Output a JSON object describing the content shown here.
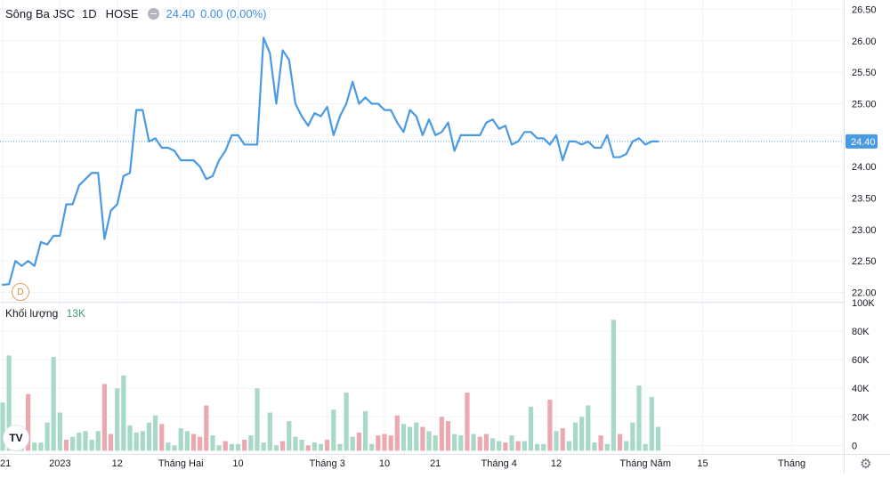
{
  "header": {
    "symbol": "Sông Ba JSC",
    "timeframe": "1D",
    "exchange": "HOSE",
    "price": "24.40",
    "change": "0.00 (0.00%)"
  },
  "volume_pane": {
    "label": "Khối lượng",
    "value": "13K"
  },
  "marker_label": "D",
  "logo_text": "TV",
  "colors": {
    "line": "#4a9ae3",
    "up": "#a8d8c8",
    "down": "#eba8ae",
    "last_price_bg": "#4a9ae3"
  },
  "chart_data": {
    "type": "line",
    "title": "",
    "xlabel": "",
    "ylabel": "",
    "last_price_label": "24.40",
    "price_ylim": [
      21.85,
      26.65
    ],
    "price_ticks": [
      "26.50",
      "26.00",
      "25.50",
      "25.00",
      "24.50",
      "24.00",
      "23.50",
      "23.00",
      "22.50",
      "22.00"
    ],
    "volume_ylim": [
      -6000,
      100000
    ],
    "volume_ticks": [
      {
        "value": 100000,
        "label": "100K"
      },
      {
        "value": 80000,
        "label": "80K"
      },
      {
        "value": 60000,
        "label": "60K"
      },
      {
        "value": 40000,
        "label": "40K"
      },
      {
        "value": 20000,
        "label": "20K"
      },
      {
        "value": 0,
        "label": "0"
      }
    ],
    "x_labels": [
      {
        "index": 0,
        "label": "21"
      },
      {
        "index": 9,
        "label": "2023"
      },
      {
        "index": 18,
        "label": "12"
      },
      {
        "index": 28,
        "label": "Tháng Hai"
      },
      {
        "index": 37,
        "label": "10"
      },
      {
        "index": 51,
        "label": "Tháng 3"
      },
      {
        "index": 60,
        "label": "10"
      },
      {
        "index": 68,
        "label": "21"
      },
      {
        "index": 78,
        "label": "Tháng 4"
      },
      {
        "index": 87,
        "label": "12"
      },
      {
        "index": 101,
        "label": "Tháng Năm"
      },
      {
        "index": 110,
        "label": "15"
      },
      {
        "index": 124,
        "label": "Tháng"
      }
    ],
    "series": [
      {
        "type": "line",
        "values": [
          22.12,
          22.13,
          22.5,
          22.42,
          22.5,
          22.42,
          22.8,
          22.76,
          22.9,
          22.9,
          23.4,
          23.4,
          23.7,
          23.8,
          23.9,
          23.9,
          22.85,
          23.3,
          23.4,
          23.85,
          23.9,
          24.9,
          24.9,
          24.4,
          24.45,
          24.3,
          24.3,
          24.25,
          24.1,
          24.1,
          24.1,
          24.0,
          23.8,
          23.85,
          24.1,
          24.25,
          24.5,
          24.5,
          24.35,
          24.35,
          24.35,
          26.05,
          25.8,
          25.0,
          25.85,
          25.7,
          25.0,
          24.8,
          24.65,
          24.85,
          24.8,
          24.95,
          24.5,
          24.8,
          25.0,
          25.35,
          25.0,
          25.1,
          25.0,
          25.0,
          24.9,
          24.9,
          24.7,
          24.55,
          24.9,
          24.8,
          24.5,
          24.75,
          24.5,
          24.55,
          24.7,
          24.25,
          24.5,
          24.5,
          24.5,
          24.5,
          24.7,
          24.75,
          24.6,
          24.65,
          24.35,
          24.4,
          24.55,
          24.55,
          24.45,
          24.45,
          24.35,
          24.5,
          24.1,
          24.4,
          24.4,
          24.35,
          24.4,
          24.3,
          24.3,
          24.5,
          24.15,
          24.15,
          24.2,
          24.4,
          24.45,
          24.35,
          24.4,
          24.4
        ]
      },
      {
        "type": "bar",
        "values": [
          30000,
          63000,
          9000,
          11000,
          36000,
          2000,
          2000,
          16000,
          62000,
          23000,
          4000,
          6000,
          9000,
          10000,
          4000,
          10000,
          43000,
          8000,
          40000,
          49000,
          14000,
          9000,
          10000,
          16000,
          21000,
          15000,
          2000,
          0,
          12000,
          10000,
          8000,
          6000,
          28000,
          7000,
          0,
          3000,
          1000,
          1000,
          4000,
          7000,
          40000,
          2000,
          23000,
          0,
          3000,
          17000,
          6000,
          4000,
          0,
          2000,
          1000,
          4000,
          25000,
          1000,
          37000,
          6000,
          9000,
          24000,
          1000,
          7000,
          8000,
          7000,
          21000,
          15000,
          13000,
          16000,
          13000,
          10000,
          7000,
          20000,
          17000,
          8000,
          7000,
          37000,
          8000,
          6000,
          8000,
          5000,
          3000,
          2000,
          7000,
          3000,
          3000,
          27000,
          1000,
          1000,
          32000,
          10000,
          12000,
          3000,
          16000,
          20000,
          28000,
          2000,
          7000,
          1000,
          88000,
          8000,
          3000,
          16000,
          42000,
          1000,
          34000,
          13000
        ],
        "direction": [
          "up",
          "up",
          "up",
          "up",
          "down",
          "up",
          "up",
          "up",
          "up",
          "up",
          "down",
          "up",
          "up",
          "up",
          "up",
          "up",
          "down",
          "down",
          "up",
          "up",
          "up",
          "up",
          "up",
          "up",
          "up",
          "down",
          "up",
          "up",
          "up",
          "up",
          "down",
          "down",
          "down",
          "up",
          "up",
          "down",
          "up",
          "up",
          "down",
          "up",
          "up",
          "up",
          "up",
          "up",
          "down",
          "up",
          "up",
          "up",
          "down",
          "up",
          "up",
          "down",
          "up",
          "up",
          "up",
          "up",
          "down",
          "up",
          "up",
          "down",
          "down",
          "down",
          "down",
          "up",
          "up",
          "up",
          "down",
          "up",
          "up",
          "down",
          "down",
          "up",
          "up",
          "down",
          "up",
          "down",
          "down",
          "up",
          "up",
          "down",
          "up",
          "down",
          "up",
          "up",
          "up",
          "up",
          "down",
          "up",
          "down",
          "up",
          "up",
          "up",
          "up",
          "up",
          "down",
          "up",
          "up",
          "down",
          "up",
          "up",
          "up",
          "up",
          "up",
          "up"
        ]
      }
    ]
  }
}
